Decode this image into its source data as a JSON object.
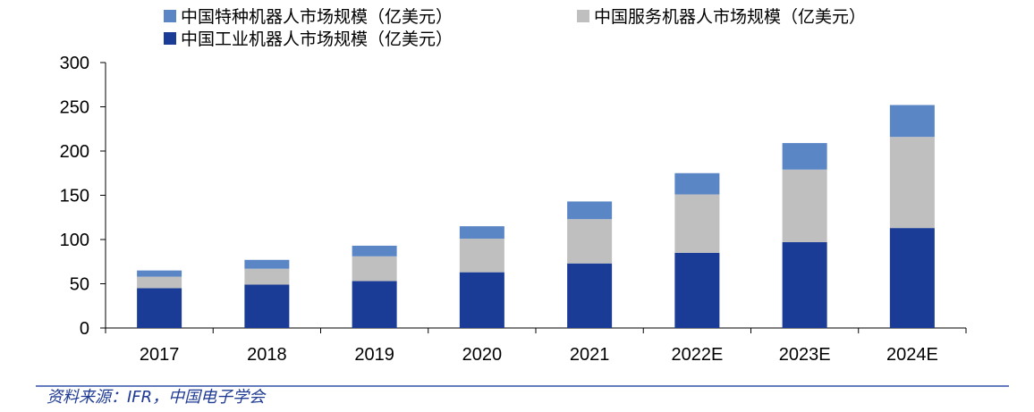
{
  "chart_data": {
    "type": "bar",
    "stacked": true,
    "title": "",
    "xlabel": "",
    "ylabel": "",
    "categories": [
      "2017",
      "2018",
      "2019",
      "2020",
      "2021",
      "2022E",
      "2023E",
      "2024E"
    ],
    "series": [
      {
        "name": "中国工业机器人市场规模（亿美元）",
        "color": "#1a3c96",
        "values": [
          45,
          49,
          53,
          63,
          73,
          85,
          97,
          113
        ]
      },
      {
        "name": "中国服务机器人市场规模（亿美元）",
        "color": "#bfbfbf",
        "values": [
          13,
          18,
          28,
          38,
          50,
          66,
          82,
          103
        ]
      },
      {
        "name": "中国特种机器人市场规模（亿美元）",
        "color": "#5b86c6",
        "values": [
          7,
          10,
          12,
          14,
          20,
          24,
          30,
          36
        ]
      }
    ],
    "ylim": [
      0,
      300
    ],
    "yticks": [
      0,
      50,
      100,
      150,
      200,
      250,
      300
    ],
    "grid": false,
    "legend_position": "top"
  },
  "legend": {
    "special": "中国特种机器人市场规模（亿美元）",
    "service": "中国服务机器人市场规模（亿美元）",
    "industrial": "中国工业机器人市场规模（亿美元）"
  },
  "source": "资料来源：IFR，中国电子学会",
  "colors": {
    "industrial": "#1a3c96",
    "service": "#bfbfbf",
    "special": "#5b86c6",
    "source_line": "#3050a8"
  }
}
